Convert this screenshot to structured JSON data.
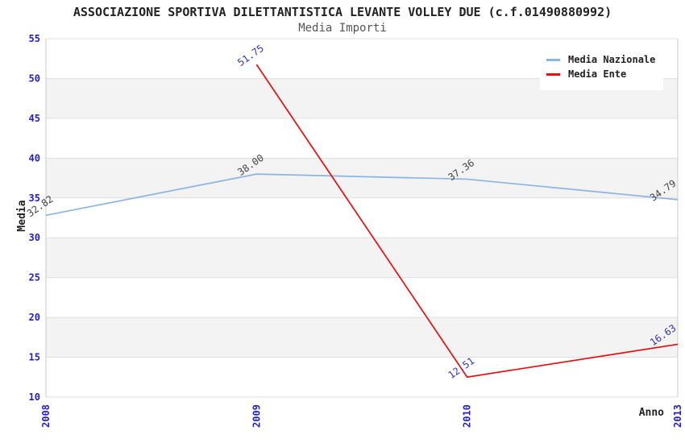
{
  "header": {
    "title": "ASSOCIAZIONE SPORTIVA DILETTANTISTICA LEVANTE VOLLEY DUE (c.f.01490880992)",
    "subtitle": "Media Importi"
  },
  "chart_data": {
    "type": "line",
    "categories": [
      "2008",
      "2009",
      "2010",
      "2013"
    ],
    "series": [
      {
        "name": "Media Nazionale",
        "color": "#8ab5e3",
        "label_color": "#444444",
        "values": [
          32.82,
          38.0,
          37.36,
          34.79
        ]
      },
      {
        "name": "Media Ente",
        "color": "#e60e0e",
        "label_color": "#3333cc",
        "values": [
          null,
          51.75,
          12.51,
          16.63
        ]
      }
    ],
    "xlabel": "Anno",
    "ylabel": "Media",
    "ylim": [
      10,
      55
    ],
    "yticks": [
      10,
      15,
      20,
      25,
      30,
      35,
      40,
      45,
      50,
      55
    ],
    "grid": "horizontal",
    "band_fill": "#f3f3f3",
    "gridline_color": "#e0e0e0",
    "border_color": "#c8c8c8",
    "tick_label_color": "#2222cc",
    "legend_position": "top-right",
    "label_format": "2dp"
  }
}
